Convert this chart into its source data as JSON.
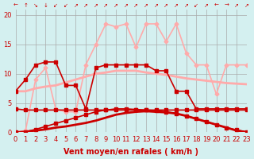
{
  "x": [
    0,
    1,
    2,
    3,
    4,
    5,
    6,
    7,
    8,
    9,
    10,
    11,
    12,
    13,
    14,
    15,
    16,
    17,
    18,
    19,
    20,
    21,
    22,
    23
  ],
  "background_color": "#d4f0f0",
  "grid_color": "#aaaaaa",
  "xlabel": "Vent moyen/en rafales ( km/h )",
  "ylim": [
    0,
    21
  ],
  "xlim": [
    0,
    23
  ],
  "yticks": [
    0,
    5,
    10,
    15,
    20
  ],
  "lines": [
    {
      "y": [
        0.0,
        0.1,
        0.3,
        0.5,
        0.8,
        1.0,
        1.3,
        1.6,
        2.0,
        2.5,
        3.0,
        3.3,
        3.5,
        3.6,
        3.5,
        3.4,
        3.2,
        2.8,
        2.3,
        1.8,
        1.3,
        0.8,
        0.3,
        0.0
      ],
      "color": "#cc0000",
      "lw": 2.0,
      "marker": null,
      "zorder": 3
    },
    {
      "y": [
        0.0,
        0.1,
        0.5,
        1.0,
        1.5,
        2.0,
        2.5,
        3.0,
        3.5,
        3.8,
        4.0,
        4.0,
        3.9,
        3.8,
        3.7,
        3.5,
        3.2,
        2.8,
        2.3,
        1.8,
        1.3,
        0.8,
        0.4,
        0.1
      ],
      "color": "#cc0000",
      "lw": 1.2,
      "marker": "s",
      "ms": 2.5,
      "zorder": 3
    },
    {
      "y": [
        4.0,
        3.8,
        3.8,
        3.8,
        3.8,
        3.8,
        3.8,
        3.8,
        3.8,
        3.8,
        3.8,
        3.8,
        3.8,
        3.8,
        3.8,
        3.8,
        3.8,
        3.8,
        3.8,
        3.8,
        3.8,
        3.8,
        3.8,
        3.8
      ],
      "color": "#cc0000",
      "lw": 1.2,
      "marker": "s",
      "ms": 2.5,
      "zorder": 3
    },
    {
      "y": [
        7.0,
        7.0,
        7.5,
        7.8,
        8.0,
        8.5,
        9.0,
        9.5,
        10.0,
        10.2,
        10.5,
        10.5,
        10.5,
        10.2,
        10.0,
        9.8,
        9.5,
        9.2,
        9.0,
        8.8,
        8.6,
        8.4,
        8.3,
        8.2
      ],
      "color": "#ffaaaa",
      "lw": 2.0,
      "marker": null,
      "zorder": 2
    },
    {
      "y": [
        7.0,
        9.0,
        11.5,
        12.0,
        12.0,
        8.0,
        8.0,
        4.0,
        11.0,
        11.5,
        11.5,
        11.5,
        11.5,
        11.5,
        10.5,
        10.5,
        7.0,
        7.0,
        4.0,
        4.0,
        4.0,
        4.0,
        4.0,
        4.0
      ],
      "color": "#cc0000",
      "lw": 1.2,
      "marker": "s",
      "ms": 2.5,
      "zorder": 3
    },
    {
      "y": [
        0.0,
        0.3,
        9.0,
        11.0,
        4.0,
        3.5,
        3.5,
        11.5,
        15.0,
        18.5,
        18.0,
        18.5,
        14.5,
        18.5,
        18.5,
        15.5,
        18.5,
        13.5,
        11.5,
        11.5,
        6.5,
        11.5,
        11.5,
        11.5
      ],
      "color": "#ffaaaa",
      "lw": 1.2,
      "marker": "D",
      "ms": 2.5,
      "zorder": 2
    }
  ],
  "arrows": [
    "←",
    "↑",
    "↘",
    "↓",
    "↙",
    "↙",
    "↗",
    "↗",
    "↗",
    "↗",
    "↗",
    "↗",
    "↗",
    "↗",
    "↗",
    "↗",
    "↗",
    "↗",
    "↙",
    "↗",
    "←",
    "→",
    "↗",
    "↗"
  ],
  "tick_label_color": "#cc0000",
  "tick_label_fontsize": 6,
  "xlabel_fontsize": 7,
  "xlabel_color": "#cc0000"
}
